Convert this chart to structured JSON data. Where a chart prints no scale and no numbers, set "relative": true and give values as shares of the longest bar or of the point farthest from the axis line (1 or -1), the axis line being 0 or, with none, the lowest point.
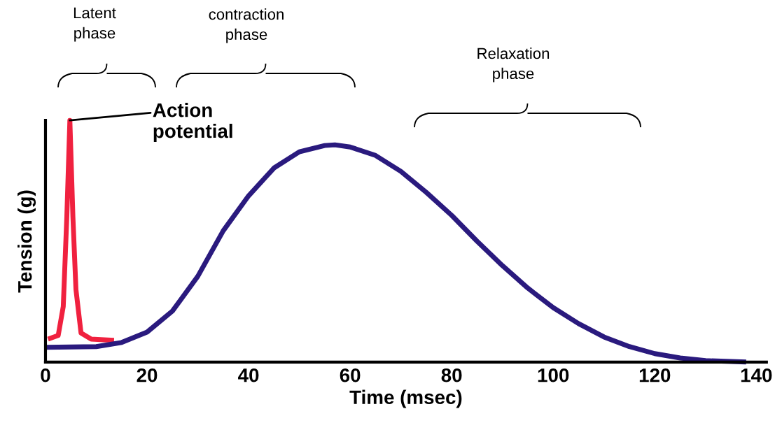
{
  "chart_data": {
    "type": "line",
    "xlabel": "Time (msec)",
    "ylabel": "Tension (g)",
    "relative": true,
    "xlim": [
      0,
      142
    ],
    "xticks": [
      0,
      20,
      40,
      60,
      80,
      100,
      120,
      140
    ],
    "grid": false,
    "legend": false,
    "marker": "none",
    "line_style": "solid",
    "series": [
      {
        "color": "#f0213f",
        "x": [
          0.5,
          2.5,
          3.5,
          4.2,
          4.8,
          5.4,
          6,
          7,
          9,
          13.5
        ],
        "values": [
          0.095,
          0.11,
          0.23,
          0.6,
          1.0,
          0.6,
          0.3,
          0.12,
          0.095,
          0.09
        ]
      },
      {
        "color": "#2a1a7e",
        "x": [
          0,
          10,
          15,
          20,
          25,
          30,
          35,
          40,
          45,
          50,
          55,
          57,
          60,
          65,
          70,
          75,
          80,
          85,
          90,
          95,
          100,
          105,
          110,
          115,
          120,
          125,
          130,
          138
        ],
        "values": [
          0.061,
          0.064,
          0.081,
          0.124,
          0.211,
          0.355,
          0.543,
          0.688,
          0.803,
          0.87,
          0.896,
          0.899,
          0.89,
          0.855,
          0.789,
          0.702,
          0.607,
          0.5,
          0.399,
          0.306,
          0.225,
          0.159,
          0.104,
          0.064,
          0.035,
          0.017,
          0.006,
          0.0
        ]
      }
    ],
    "annotations": [
      {
        "text": "Action\npotential",
        "x": 4.8,
        "y": 1.0
      },
      "Latent\nphase",
      "contraction\nphase",
      "Relaxation\nphase"
    ]
  }
}
